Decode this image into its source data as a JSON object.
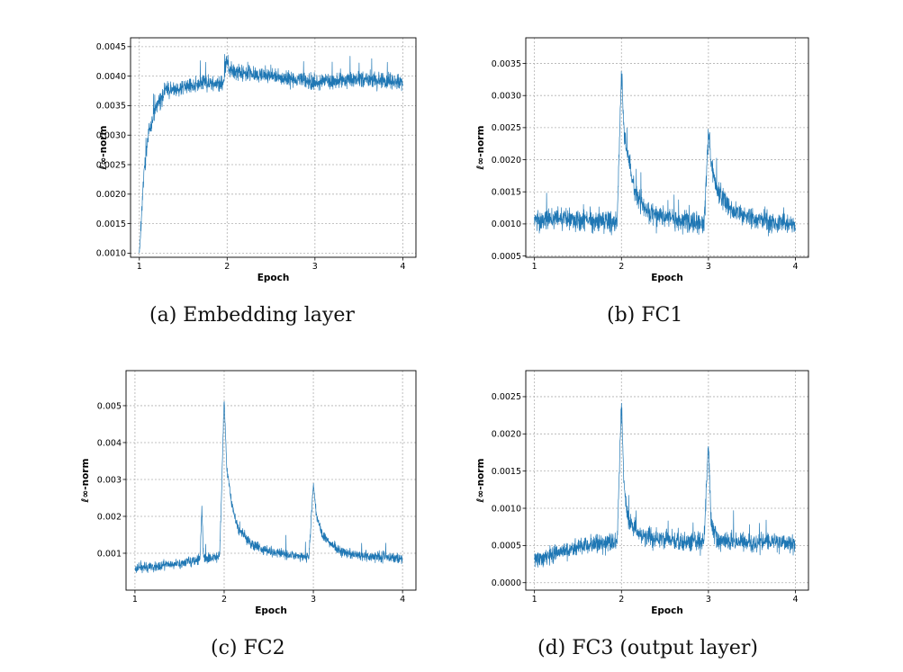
{
  "captions": {
    "a": "(a)  Embedding layer",
    "b": "(b)  FC1",
    "c": "(c)  FC2",
    "d": "(d)  FC3 (output layer)"
  },
  "chart_data": [
    {
      "id": "a",
      "type": "line",
      "xlabel": "Epoch",
      "ylabel": "ℓ∞-norm",
      "xlim": [
        0.9,
        4.15
      ],
      "ylim": [
        0.00093,
        0.00465
      ],
      "xticks": [
        "1",
        "2",
        "3",
        "4"
      ],
      "yticks": [
        "0.0010",
        "0.0015",
        "0.0020",
        "0.0025",
        "0.0030",
        "0.0035",
        "0.0040",
        "0.0045"
      ],
      "grid": true,
      "color": "#1f77b4",
      "series": [
        {
          "x": [
            1.0,
            1.05,
            1.1,
            1.2,
            1.3,
            1.5,
            1.75,
            1.95,
            2.0,
            2.02,
            2.25,
            2.5,
            2.75,
            3.0,
            3.25,
            3.5,
            3.75,
            4.0
          ],
          "y": [
            0.001,
            0.0023,
            0.003,
            0.0035,
            0.00375,
            0.0038,
            0.0039,
            0.00385,
            0.0043,
            0.0041,
            0.00405,
            0.004,
            0.00395,
            0.0039,
            0.00392,
            0.00395,
            0.00392,
            0.0039
          ]
        }
      ]
    },
    {
      "id": "b",
      "type": "line",
      "xlabel": "Epoch",
      "ylabel": "ℓ∞-norm",
      "xlim": [
        0.9,
        4.15
      ],
      "ylim": [
        0.00048,
        0.0039
      ],
      "xticks": [
        "1",
        "2",
        "3",
        "4"
      ],
      "yticks": [
        "0.0005",
        "0.0010",
        "0.0015",
        "0.0020",
        "0.0025",
        "0.0030",
        "0.0035"
      ],
      "grid": true,
      "color": "#1f77b4",
      "series": [
        {
          "x": [
            1.0,
            1.25,
            1.5,
            1.75,
            1.95,
            2.0,
            2.03,
            2.08,
            2.15,
            2.3,
            2.5,
            2.75,
            2.95,
            3.0,
            3.03,
            3.1,
            3.3,
            3.5,
            3.75,
            4.0
          ],
          "y": [
            0.00105,
            0.0011,
            0.00108,
            0.00105,
            0.001,
            0.0034,
            0.0024,
            0.002,
            0.0015,
            0.00118,
            0.0011,
            0.00105,
            0.001,
            0.0024,
            0.002,
            0.0015,
            0.00118,
            0.00108,
            0.00102,
            0.00098
          ]
        }
      ]
    },
    {
      "id": "c",
      "type": "line",
      "xlabel": "Epoch",
      "ylabel": "ℓ∞-norm",
      "xlim": [
        0.9,
        4.15
      ],
      "ylim": [
        0.0,
        0.00595
      ],
      "xticks": [
        "1",
        "2",
        "3",
        "4"
      ],
      "yticks": [
        "0.001",
        "0.002",
        "0.003",
        "0.004",
        "0.005"
      ],
      "grid": true,
      "color": "#1f77b4",
      "series": [
        {
          "x": [
            1.0,
            1.25,
            1.5,
            1.73,
            1.75,
            1.77,
            1.95,
            2.0,
            2.03,
            2.08,
            2.15,
            2.3,
            2.5,
            2.75,
            2.95,
            3.0,
            3.03,
            3.1,
            3.3,
            3.5,
            3.75,
            4.0
          ],
          "y": [
            0.0006,
            0.00065,
            0.00072,
            0.00085,
            0.0022,
            0.00085,
            0.0009,
            0.0052,
            0.0033,
            0.0024,
            0.0017,
            0.00125,
            0.00105,
            0.00095,
            0.0009,
            0.0029,
            0.0021,
            0.0015,
            0.00105,
            0.00095,
            0.0009,
            0.00088
          ]
        }
      ]
    },
    {
      "id": "d",
      "type": "line",
      "xlabel": "Epoch",
      "ylabel": "ℓ∞-norm",
      "xlim": [
        0.9,
        4.15
      ],
      "ylim": [
        -0.0001,
        0.00285
      ],
      "xticks": [
        "1",
        "2",
        "3",
        "4"
      ],
      "yticks": [
        "0.0000",
        "0.0005",
        "0.0010",
        "0.0015",
        "0.0020",
        "0.0025"
      ],
      "grid": true,
      "color": "#1f77b4",
      "series": [
        {
          "x": [
            1.0,
            1.25,
            1.5,
            1.75,
            1.95,
            2.0,
            2.03,
            2.08,
            2.2,
            2.5,
            2.75,
            2.95,
            3.0,
            3.03,
            3.1,
            3.3,
            3.5,
            3.75,
            4.0
          ],
          "y": [
            0.0003,
            0.0004,
            0.00048,
            0.00052,
            0.00055,
            0.0024,
            0.0013,
            0.00085,
            0.00065,
            0.00058,
            0.00056,
            0.00055,
            0.0019,
            0.0008,
            0.00058,
            0.00055,
            0.00054,
            0.00055,
            0.00054
          ]
        }
      ]
    }
  ]
}
